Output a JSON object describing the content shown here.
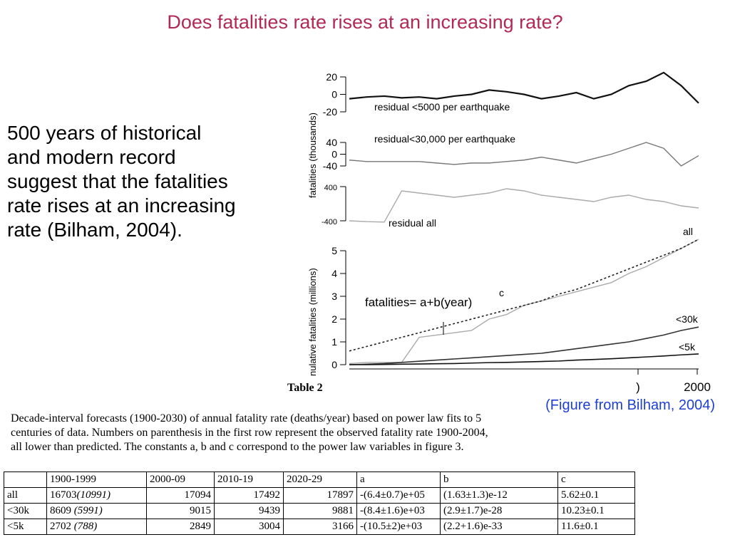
{
  "title": "Does fatalities rate rises at an increasing rate?",
  "body_lines": [
    "500 years of historical",
    "and modern record",
    "suggest that the fatalities",
    "rate rises at an increasing",
    "rate (Bilham, 2004)."
  ],
  "figure": {
    "ylabel_top": "fatalities (thousands)",
    "ylabel_bottom": "nulative fatalities (millions)",
    "xtick_labels": [
      ")",
      "2000"
    ],
    "panels": [
      {
        "ylim": [
          -20,
          20
        ],
        "yticks": [
          20,
          0,
          -20
        ],
        "label": "residual <5000 per earthquake",
        "series": [
          {
            "color": "#111111",
            "width": 2.2,
            "values": [
              -5,
              -3,
              -2,
              -4,
              -3,
              -5,
              -2,
              0,
              5,
              3,
              0,
              -5,
              -2,
              2,
              -5,
              0,
              10,
              15,
              25,
              10,
              -10
            ]
          }
        ]
      },
      {
        "ylim": [
          -40,
          40
        ],
        "yticks": [
          40,
          0,
          -40
        ],
        "label": "residual<30,000 per earthquake",
        "series": [
          {
            "color": "#777777",
            "width": 1.4,
            "values": [
              -20,
              -25,
              -25,
              -25,
              -25,
              -30,
              -35,
              -30,
              -30,
              -25,
              -20,
              -10,
              -20,
              -30,
              -15,
              0,
              20,
              40,
              20,
              -40,
              -5
            ]
          }
        ]
      },
      {
        "ylim": [
          -400,
          400
        ],
        "yticks": [
          400,
          -400
        ],
        "label": "residual all",
        "series": [
          {
            "color": "#aaaaaa",
            "width": 1.4,
            "values": [
              -400,
              -420,
              -430,
              300,
              250,
              200,
              150,
              200,
              250,
              350,
              300,
              200,
              150,
              100,
              50,
              150,
              200,
              100,
              50,
              -50,
              -100
            ]
          }
        ]
      },
      {
        "ylim": [
          0,
          5
        ],
        "yticks": [
          5,
          4,
          3,
          2,
          1,
          0
        ],
        "label": "fatalities= a+b(year)",
        "label_sup": "c",
        "series_labels": [
          "all",
          "<30k",
          "<5k"
        ],
        "series": [
          {
            "color": "#aaaaaa",
            "width": 1.4,
            "values": [
              0.05,
              0.1,
              0.1,
              0.1,
              1.2,
              1.3,
              1.4,
              1.5,
              2.0,
              2.2,
              2.6,
              2.8,
              3.0,
              3.2,
              3.4,
              3.6,
              4.0,
              4.3,
              4.7,
              5.1,
              5.5
            ]
          },
          {
            "color": "#222222",
            "width": 1.6,
            "dash": "3,3",
            "values": [
              0.6,
              0.8,
              1.0,
              1.2,
              1.4,
              1.6,
              1.8,
              2.0,
              2.2,
              2.4,
              2.6,
              2.8,
              3.1,
              3.3,
              3.6,
              3.9,
              4.2,
              4.5,
              4.8,
              5.1,
              5.5
            ]
          },
          {
            "color": "#333333",
            "width": 1.6,
            "values": [
              0,
              0.02,
              0.05,
              0.1,
              0.15,
              0.2,
              0.25,
              0.3,
              0.35,
              0.4,
              0.45,
              0.5,
              0.6,
              0.7,
              0.8,
              0.9,
              1.0,
              1.15,
              1.3,
              1.5,
              1.65
            ]
          },
          {
            "color": "#111111",
            "width": 1.6,
            "values": [
              0,
              0,
              0.01,
              0.02,
              0.03,
              0.04,
              0.05,
              0.07,
              0.09,
              0.1,
              0.12,
              0.14,
              0.16,
              0.2,
              0.23,
              0.26,
              0.3,
              0.34,
              0.38,
              0.43,
              0.47
            ]
          }
        ]
      }
    ]
  },
  "table_label": "Table 2",
  "figure_credit": "(Figure from Bilham, 2004)",
  "caption_lines": [
    "Decade-interval forecasts (1900-2030) of annual fatality rate (deaths/year) based on power law fits to 5",
    "centuries of data.  Numbers on parenthesis in the first row represent the observed fatality rate 1900-2004,",
    "all lower than predicted. The constants a, b and c correspond to the power law variables in figure 3."
  ],
  "table": {
    "header": [
      "",
      "1900-1999",
      "2000-09",
      "2010-19",
      "2020-29",
      "a",
      "b",
      "c"
    ],
    "rows": [
      [
        "all",
        {
          "main": "16703",
          "note": "(10991)"
        },
        "17094",
        "17492",
        "17897",
        "-(6.4±0.7)e+05",
        "(1.63±1.3)e-12",
        "5.62±0.1"
      ],
      [
        "<30k",
        {
          "main": "8609 ",
          "note": "(5991)"
        },
        "9015",
        "9439",
        "9881",
        "-(8.4±1.6)e+03",
        "(2.9±1.7)e-28",
        "10.23±0.1"
      ],
      [
        "<5k",
        {
          "main": "2702 ",
          "note": "(788)"
        },
        "2849",
        "3004",
        "3166",
        "-(10.5±2)e+03",
        "(2.2+1.6)e-33",
        "11.6±0.1"
      ]
    ]
  }
}
